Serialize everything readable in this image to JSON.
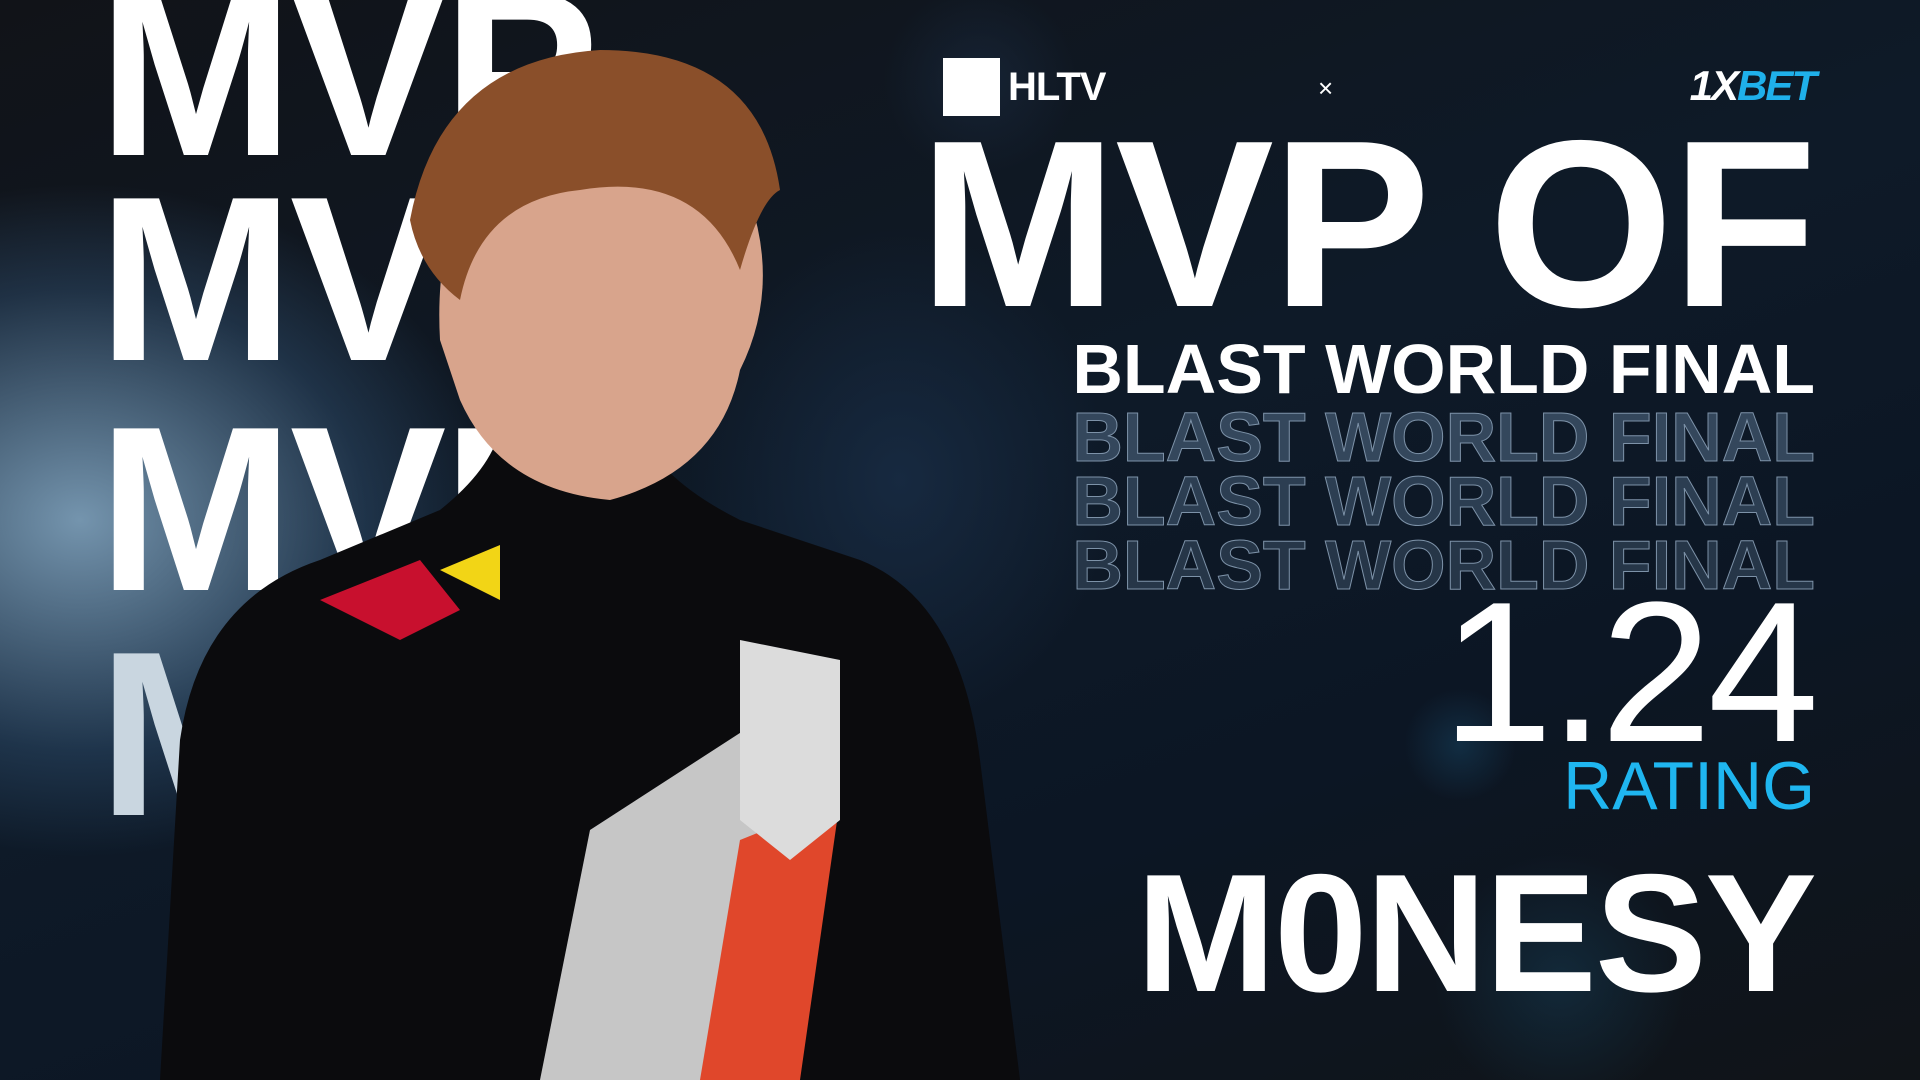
{
  "background_words": [
    "MVP",
    "MVP",
    "MVP",
    "MVP"
  ],
  "header": {
    "hltv_logo": "HLTV",
    "separator": "×",
    "sponsor_logo_part1": "1X",
    "sponsor_logo_part2": "BET"
  },
  "award": {
    "title": "MVP OF",
    "event": "BLAST WORLD FINAL",
    "event_echo": [
      "BLAST WORLD FINAL",
      "BLAST WORLD FINAL",
      "BLAST WORLD FINAL"
    ]
  },
  "stats": {
    "rating_value": "1.24",
    "rating_label": "RATING"
  },
  "player": {
    "name": "M0NESY"
  },
  "colors": {
    "accent": "#1fb6f0",
    "background": "#0d1219"
  }
}
